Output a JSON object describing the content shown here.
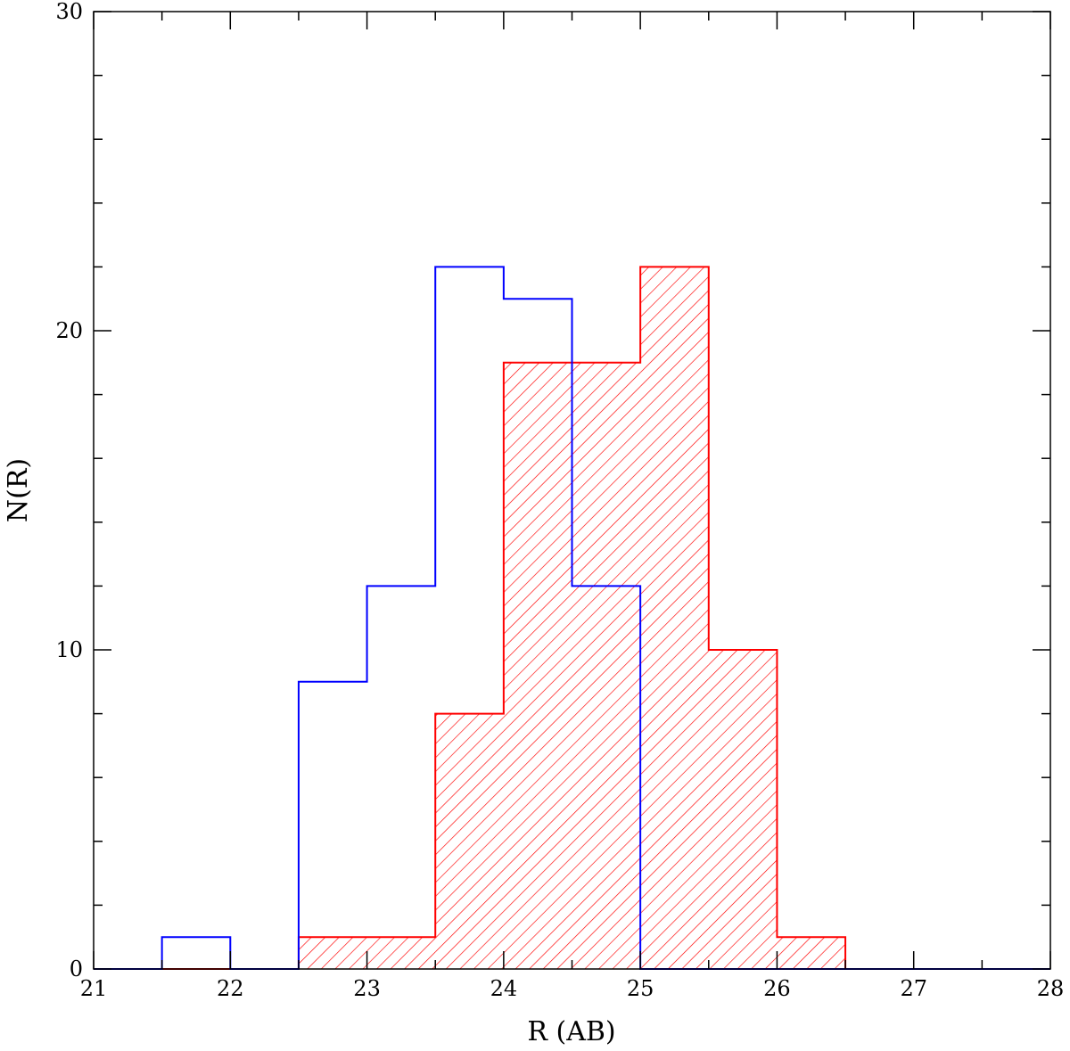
{
  "chart_data": {
    "type": "histogram",
    "title": "",
    "xlabel": "R (AB)",
    "ylabel": "N(R)",
    "xlim": [
      21,
      28
    ],
    "ylim": [
      0,
      30
    ],
    "x_major_ticks": [
      21,
      22,
      23,
      24,
      25,
      26,
      27,
      28
    ],
    "x_tick_labels": [
      "21",
      "22",
      "23",
      "24",
      "25",
      "26",
      "27",
      "28"
    ],
    "x_minor_step": 0.5,
    "y_major_ticks": [
      0,
      10,
      20,
      30
    ],
    "y_tick_labels": [
      "0",
      "10",
      "20",
      "30"
    ],
    "y_minor_step": 2,
    "grid": false,
    "bin_width": 0.5,
    "bin_edges": [
      21.0,
      21.5,
      22.0,
      22.5,
      23.0,
      23.5,
      24.0,
      24.5,
      25.0,
      25.5,
      26.0,
      26.5,
      27.0,
      27.5,
      28.0
    ],
    "series": [
      {
        "style": "hatched",
        "color": "#ff0000",
        "counts": [
          0,
          0,
          0,
          1,
          1,
          8,
          19,
          19,
          22,
          10,
          1,
          0,
          0,
          0
        ]
      },
      {
        "style": "outline",
        "color": "#0000ff",
        "counts": [
          0,
          1,
          0,
          9,
          12,
          22,
          21,
          12,
          0,
          0,
          0,
          0,
          0,
          0
        ]
      }
    ]
  }
}
